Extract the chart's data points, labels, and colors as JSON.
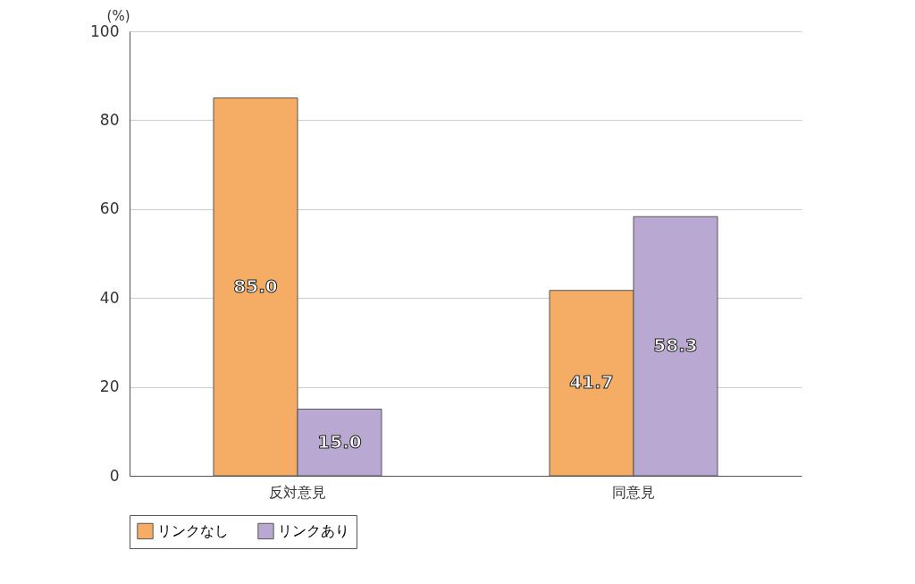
{
  "chart_data": {
    "type": "bar",
    "ylabel": "(%)",
    "categories": [
      "反対意見",
      "同意見"
    ],
    "series": [
      {
        "name": "リンクなし",
        "color": "#f5ad65",
        "values": [
          85.0,
          41.7
        ],
        "value_labels": [
          "85.0",
          "41.7"
        ]
      },
      {
        "name": "リンクあり",
        "color": "#b9a8d2",
        "values": [
          15.0,
          58.3
        ],
        "value_labels": [
          "15.0",
          "58.3"
        ]
      }
    ],
    "ylim": [
      0,
      100
    ],
    "yticks": [
      0,
      20,
      40,
      60,
      80,
      100
    ],
    "grid": "y",
    "legend": "bottom"
  }
}
